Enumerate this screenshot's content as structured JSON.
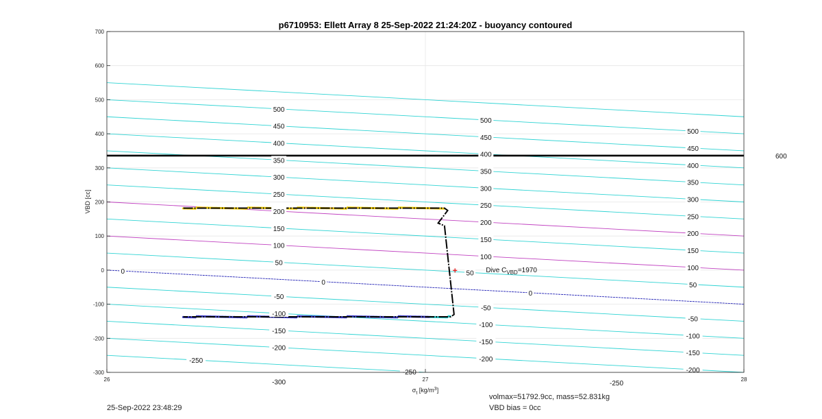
{
  "chart_data": {
    "type": "line",
    "title": "p6710953: Ellett Array 8 25-Sep-2022 21:24:20Z - buoyancy contoured",
    "xlabel": "σ_t [kg/m³]",
    "ylabel": "VBD [cc]",
    "xlim": [
      26,
      28
    ],
    "ylim": [
      -300,
      700
    ],
    "xticks": [
      26,
      27,
      28
    ],
    "yticks": [
      -300,
      -200,
      -100,
      0,
      100,
      200,
      300,
      400,
      500,
      600,
      700
    ],
    "grid": true,
    "contour_slope_cc_per_kg": -50,
    "contours": {
      "levels": [
        -300,
        -250,
        -200,
        -150,
        -100,
        -50,
        0,
        50,
        100,
        150,
        200,
        250,
        300,
        350,
        400,
        450,
        500,
        550
      ],
      "highlight_levels": {
        "0": "#1f1fb4",
        "100": "#c040c0",
        "200": "#c040c0"
      },
      "default_color": "#2ed3d3",
      "labels": [
        {
          "x": 26.05,
          "value": 0
        },
        {
          "x": 26.28,
          "value": -250
        },
        {
          "x": 26.54,
          "value": 500
        },
        {
          "x": 26.54,
          "value": 450
        },
        {
          "x": 26.54,
          "value": 400
        },
        {
          "x": 26.54,
          "value": 350
        },
        {
          "x": 26.54,
          "value": 300
        },
        {
          "x": 26.54,
          "value": 250
        },
        {
          "x": 26.54,
          "value": 200
        },
        {
          "x": 26.54,
          "value": 150
        },
        {
          "x": 26.54,
          "value": 100
        },
        {
          "x": 26.54,
          "value": 50
        },
        {
          "x": 26.54,
          "value": -50
        },
        {
          "x": 26.54,
          "value": -100
        },
        {
          "x": 26.54,
          "value": -150
        },
        {
          "x": 26.54,
          "value": -200
        },
        {
          "x": 26.54,
          "value": -300
        },
        {
          "x": 26.68,
          "value": 0
        },
        {
          "x": 26.95,
          "value": -250
        },
        {
          "x": 27.19,
          "value": 500
        },
        {
          "x": 27.19,
          "value": 450
        },
        {
          "x": 27.19,
          "value": 400
        },
        {
          "x": 27.19,
          "value": 350
        },
        {
          "x": 27.19,
          "value": 300
        },
        {
          "x": 27.19,
          "value": 250
        },
        {
          "x": 27.19,
          "value": 200
        },
        {
          "x": 27.19,
          "value": 150
        },
        {
          "x": 27.19,
          "value": 100
        },
        {
          "x": 27.14,
          "value": 50
        },
        {
          "x": 27.19,
          "value": -50
        },
        {
          "x": 27.19,
          "value": -100
        },
        {
          "x": 27.19,
          "value": -150
        },
        {
          "x": 27.19,
          "value": -200
        },
        {
          "x": 27.33,
          "value": 0
        },
        {
          "x": 27.6,
          "value": -250
        },
        {
          "x": 27.84,
          "value": 500
        },
        {
          "x": 27.84,
          "value": 450
        },
        {
          "x": 27.84,
          "value": 400
        },
        {
          "x": 27.84,
          "value": 350
        },
        {
          "x": 27.84,
          "value": 300
        },
        {
          "x": 27.84,
          "value": 250
        },
        {
          "x": 27.84,
          "value": 200
        },
        {
          "x": 27.84,
          "value": 150
        },
        {
          "x": 27.84,
          "value": 100
        },
        {
          "x": 27.84,
          "value": 50
        },
        {
          "x": 27.84,
          "value": -50
        },
        {
          "x": 27.84,
          "value": -100
        },
        {
          "x": 27.84,
          "value": -150
        },
        {
          "x": 27.84,
          "value": -200
        }
      ]
    },
    "hline": {
      "y": 336,
      "label": "600",
      "color": "#000000"
    },
    "series": [
      {
        "style": "dive-path",
        "color": "#000000",
        "x": [
          26.24,
          27.06,
          27.07,
          27.04,
          27.06,
          27.09,
          27.08,
          26.24
        ],
        "y": [
          182,
          182,
          175,
          138,
          130,
          -130,
          -137,
          -137
        ]
      },
      {
        "style": "scatter-dots",
        "colors": [
          "#ffd700",
          "#f4b942",
          "#2ed3d3",
          "#3b3bc8"
        ],
        "segments": [
          {
            "x0": 26.24,
            "x1": 27.06,
            "y": 182,
            "color": "#ffd700"
          },
          {
            "x0": 26.24,
            "x1": 27.08,
            "y": -137,
            "color": "#3b3bc8"
          }
        ]
      }
    ],
    "marker": {
      "x": 27.093,
      "y": -1,
      "color": "#e02020",
      "symbol": "+"
    },
    "annotation": {
      "text": "Dive C",
      "sub": "VBD",
      "suffix": "=1970",
      "x": 27.19,
      "y": 2
    }
  },
  "footer": {
    "timestamp": "25-Sep-2022 23:48:29",
    "volmax": "volmax=51792.9cc, mass=52.831kg",
    "vbd_bias": "VBD bias = 0cc"
  }
}
